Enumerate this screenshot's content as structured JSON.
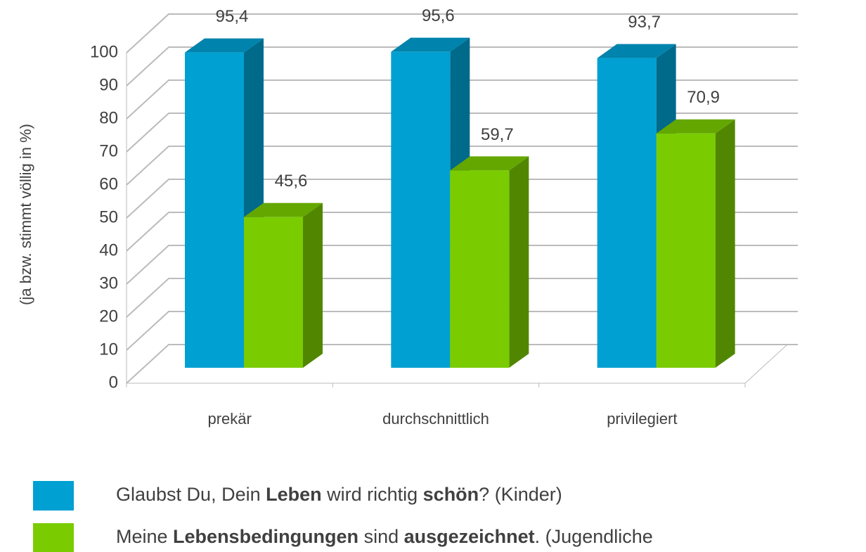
{
  "chart_data": {
    "type": "bar3d",
    "y_axis_label": "(ja  bzw. stimmt völlig in %)",
    "categories": [
      "prekär",
      "durchschnittlich",
      "privilegiert"
    ],
    "series": [
      {
        "name": [
          {
            "text": "Glaubst Du, Dein "
          },
          {
            "text": "Leben",
            "bold": true
          },
          {
            "text": " wird richtig "
          },
          {
            "text": "schön",
            "bold": true
          },
          {
            "text": "? (Kinder)"
          }
        ],
        "color": "#00a0d2",
        "values": [
          95.4,
          95.6,
          93.7
        ],
        "value_labels": [
          "95,4",
          "95,6",
          "93,7"
        ]
      },
      {
        "name": [
          {
            "text": "Meine "
          },
          {
            "text": "Lebensbedingungen",
            "bold": true
          },
          {
            "text": " sind "
          },
          {
            "text": "ausgezeichnet",
            "bold": true
          },
          {
            "text": ". (Jugendliche"
          }
        ],
        "color": "#7acc00",
        "values": [
          45.6,
          59.7,
          70.9
        ],
        "value_labels": [
          "45,6",
          "59,7",
          "70,9"
        ]
      }
    ],
    "ylim": [
      0,
      100
    ],
    "yticks": [
      0,
      10,
      20,
      30,
      40,
      50,
      60,
      70,
      80,
      90,
      100
    ],
    "grid": true
  }
}
